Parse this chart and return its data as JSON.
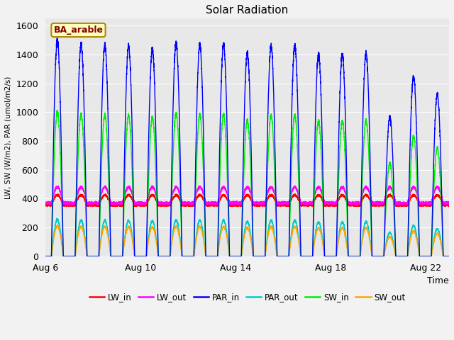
{
  "title": "Solar Radiation",
  "ylabel": "LW, SW (W/m2), PAR (umol/m2/s)",
  "xlabel": "Time",
  "plot_bg_color": "#e8e8e8",
  "fig_bg_color": "#f2f2f2",
  "ylim": [
    0,
    1650
  ],
  "yticks": [
    0,
    200,
    400,
    600,
    800,
    1000,
    1200,
    1400,
    1600
  ],
  "n_days": 17,
  "pts_per_day": 288,
  "series": {
    "LW_in": {
      "color": "#ff0000",
      "lw": 1.0
    },
    "LW_out": {
      "color": "#ff00ff",
      "lw": 1.0
    },
    "PAR_in": {
      "color": "#0000ff",
      "lw": 1.0
    },
    "PAR_out": {
      "color": "#00cccc",
      "lw": 1.0
    },
    "SW_in": {
      "color": "#00ee00",
      "lw": 1.0
    },
    "SW_out": {
      "color": "#ffa500",
      "lw": 1.0
    }
  },
  "xtick_positions": [
    0,
    4,
    8,
    12,
    16
  ],
  "xtick_labels": [
    "Aug 6",
    "Aug 10",
    "Aug 14",
    "Aug 18",
    "Aug 22"
  ],
  "xlim": [
    0,
    17
  ],
  "box_label": "BA_arable",
  "box_facecolor": "#ffffc0",
  "box_edgecolor": "#aa8800",
  "box_textcolor": "#880000"
}
